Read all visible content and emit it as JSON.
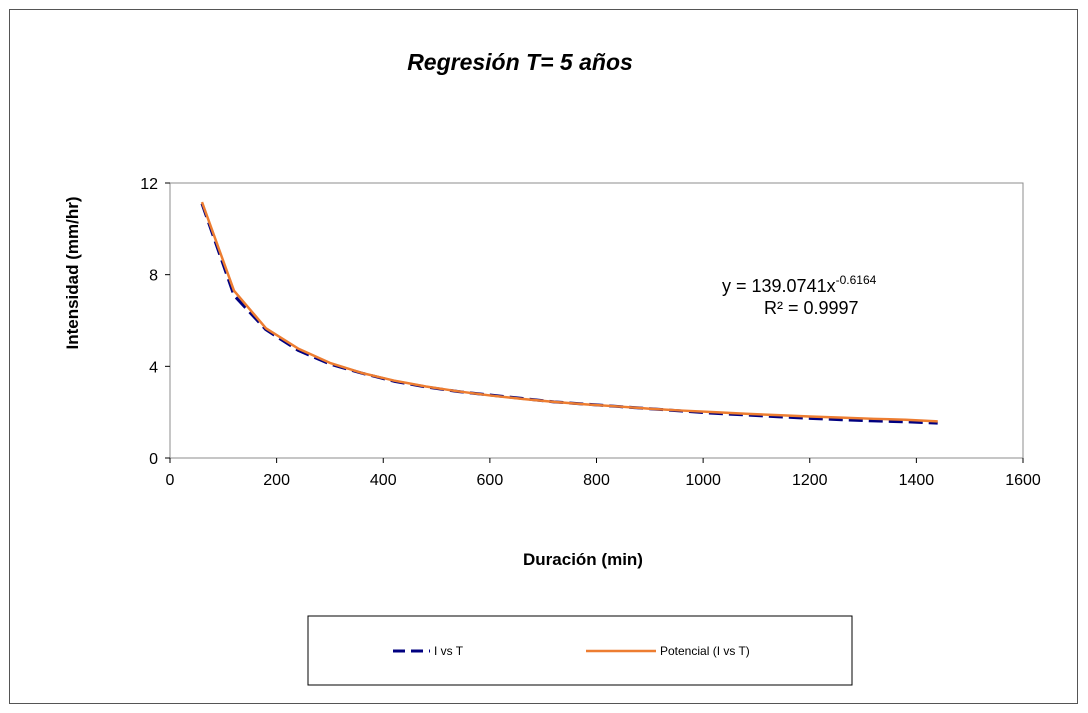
{
  "chart_data": {
    "type": "line",
    "title": "Regresión T= 5 años",
    "xlabel": "Duración (min)",
    "ylabel": "Intensidad (mm/hr)",
    "xlim": [
      0,
      1600
    ],
    "ylim": [
      0,
      12
    ],
    "xticks": [
      "0",
      "200",
      "400",
      "600",
      "800",
      "1000",
      "1200",
      "1400",
      "1600"
    ],
    "yticks": [
      "0",
      "4",
      "8",
      "12"
    ],
    "grid": false,
    "legend_position": "bottom",
    "series": [
      {
        "name": "I vs T",
        "style": "dashed",
        "color": "#000080",
        "x": [
          60,
          120,
          180,
          240,
          300,
          360,
          420,
          480,
          540,
          600,
          660,
          720,
          780,
          840,
          900,
          960,
          1020,
          1080,
          1140,
          1200,
          1260,
          1320,
          1380,
          1440
        ],
        "y": [
          11.1,
          7.1,
          5.6,
          4.7,
          4.1,
          3.7,
          3.35,
          3.1,
          2.9,
          2.75,
          2.6,
          2.45,
          2.35,
          2.25,
          2.15,
          2.05,
          1.95,
          1.88,
          1.8,
          1.73,
          1.67,
          1.62,
          1.58,
          1.52
        ]
      },
      {
        "name": "Potencial (I vs T)",
        "style": "solid",
        "color": "#ED7D31",
        "x": [
          60,
          120,
          180,
          240,
          300,
          360,
          420,
          480,
          540,
          600,
          660,
          720,
          780,
          840,
          900,
          960,
          1020,
          1080,
          1140,
          1200,
          1260,
          1320,
          1380,
          1440
        ],
        "y": [
          11.17,
          7.3,
          5.66,
          4.78,
          4.15,
          3.71,
          3.38,
          3.12,
          2.91,
          2.73,
          2.58,
          2.45,
          2.34,
          2.25,
          2.15,
          2.07,
          2.0,
          1.93,
          1.87,
          1.81,
          1.76,
          1.71,
          1.67,
          1.6
        ]
      }
    ],
    "annotations": {
      "equation_base": "y = 139.0741x",
      "equation_exponent": "-0.6164",
      "r_squared": "R² = 0.9997"
    }
  }
}
